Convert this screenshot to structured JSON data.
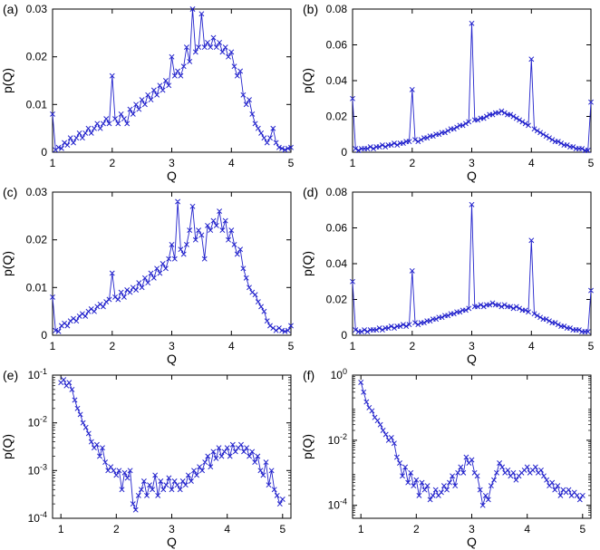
{
  "figure": {
    "background": "#ffffff",
    "line_color": "#2222cc",
    "axis_color": "#000000"
  },
  "chart_data": [
    {
      "type": "line",
      "panel_label": "(a)",
      "xlabel": "Q",
      "ylabel": "p(Q)",
      "marker": "x",
      "yscale": "linear",
      "xlim": [
        1,
        5
      ],
      "ylim": [
        0,
        0.03
      ],
      "xticks": [
        1,
        2,
        3,
        4,
        5
      ],
      "xtick_labels": [
        "1",
        "2",
        "3",
        "4",
        "5"
      ],
      "yticks": [
        0,
        0.01,
        0.02,
        0.03
      ],
      "ytick_labels": [
        "0",
        "0.01",
        "0.02",
        "0.03"
      ],
      "x_start": 1.0,
      "x_step": 0.05,
      "y": [
        0.008,
        0.0005,
        0.001,
        0.0008,
        0.002,
        0.0015,
        0.003,
        0.002,
        0.003,
        0.004,
        0.003,
        0.004,
        0.005,
        0.004,
        0.005,
        0.006,
        0.005,
        0.006,
        0.007,
        0.006,
        0.016,
        0.007,
        0.006,
        0.008,
        0.007,
        0.006,
        0.009,
        0.008,
        0.01,
        0.009,
        0.011,
        0.01,
        0.012,
        0.011,
        0.013,
        0.012,
        0.014,
        0.013,
        0.015,
        0.014,
        0.02,
        0.016,
        0.017,
        0.016,
        0.018,
        0.022,
        0.019,
        0.03,
        0.021,
        0.022,
        0.029,
        0.022,
        0.023,
        0.022,
        0.024,
        0.022,
        0.023,
        0.021,
        0.022,
        0.02,
        0.021,
        0.018,
        0.016,
        0.017,
        0.012,
        0.01,
        0.011,
        0.008,
        0.006,
        0.005,
        0.004,
        0.003,
        0.002,
        0.003,
        0.005,
        0.002,
        0.001,
        0.0008,
        0.0005,
        0.0008,
        0.001
      ]
    },
    {
      "type": "line",
      "panel_label": "(b)",
      "xlabel": "Q",
      "ylabel": "p(Q)",
      "marker": "x",
      "yscale": "linear",
      "xlim": [
        1,
        5
      ],
      "ylim": [
        0,
        0.08
      ],
      "xticks": [
        1,
        2,
        3,
        4,
        5
      ],
      "xtick_labels": [
        "1",
        "2",
        "3",
        "4",
        "5"
      ],
      "yticks": [
        0,
        0.02,
        0.04,
        0.06,
        0.08
      ],
      "ytick_labels": [
        "0",
        "0.02",
        "0.04",
        "0.06",
        "0.08"
      ],
      "x_start": 1.0,
      "x_step": 0.05,
      "y": [
        0.03,
        0.002,
        0.001,
        0.002,
        0.002,
        0.002,
        0.003,
        0.002,
        0.003,
        0.003,
        0.004,
        0.003,
        0.004,
        0.004,
        0.005,
        0.004,
        0.005,
        0.005,
        0.006,
        0.006,
        0.035,
        0.007,
        0.006,
        0.007,
        0.008,
        0.008,
        0.009,
        0.009,
        0.01,
        0.01,
        0.011,
        0.011,
        0.012,
        0.013,
        0.013,
        0.014,
        0.015,
        0.015,
        0.016,
        0.017,
        0.072,
        0.018,
        0.018,
        0.019,
        0.019,
        0.02,
        0.021,
        0.021,
        0.022,
        0.022,
        0.023,
        0.022,
        0.021,
        0.021,
        0.02,
        0.019,
        0.018,
        0.017,
        0.016,
        0.015,
        0.052,
        0.013,
        0.012,
        0.011,
        0.01,
        0.009,
        0.008,
        0.007,
        0.006,
        0.006,
        0.005,
        0.004,
        0.004,
        0.003,
        0.003,
        0.002,
        0.002,
        0.002,
        0.001,
        0.001,
        0.028
      ]
    },
    {
      "type": "line",
      "panel_label": "(c)",
      "xlabel": "Q",
      "ylabel": "p(Q)",
      "marker": "x",
      "yscale": "linear",
      "xlim": [
        1,
        5
      ],
      "ylim": [
        0,
        0.03
      ],
      "xticks": [
        1,
        2,
        3,
        4,
        5
      ],
      "xtick_labels": [
        "1",
        "2",
        "3",
        "4",
        "5"
      ],
      "yticks": [
        0,
        0.01,
        0.02,
        0.03
      ],
      "ytick_labels": [
        "0",
        "0.01",
        "0.02",
        "0.03"
      ],
      "x_start": 1.0,
      "x_step": 0.05,
      "y": [
        0.008,
        0.001,
        0.0008,
        0.002,
        0.0025,
        0.002,
        0.003,
        0.0035,
        0.003,
        0.004,
        0.0045,
        0.004,
        0.005,
        0.0055,
        0.005,
        0.006,
        0.0065,
        0.006,
        0.007,
        0.0075,
        0.013,
        0.008,
        0.0075,
        0.009,
        0.008,
        0.0095,
        0.009,
        0.01,
        0.0095,
        0.011,
        0.01,
        0.012,
        0.011,
        0.013,
        0.012,
        0.014,
        0.013,
        0.015,
        0.014,
        0.016,
        0.019,
        0.016,
        0.028,
        0.018,
        0.017,
        0.019,
        0.022,
        0.027,
        0.02,
        0.022,
        0.021,
        0.016,
        0.023,
        0.022,
        0.024,
        0.023,
        0.026,
        0.022,
        0.024,
        0.02,
        0.022,
        0.019,
        0.017,
        0.018,
        0.014,
        0.012,
        0.01,
        0.009,
        0.0085,
        0.007,
        0.006,
        0.005,
        0.003,
        0.002,
        0.0015,
        0.001,
        0.0015,
        0.001,
        0.0008,
        0.001,
        0.002
      ]
    },
    {
      "type": "line",
      "panel_label": "(d)",
      "xlabel": "Q",
      "ylabel": "p(Q)",
      "marker": "x",
      "yscale": "linear",
      "xlim": [
        1,
        5
      ],
      "ylim": [
        0,
        0.08
      ],
      "xticks": [
        1,
        2,
        3,
        4,
        5
      ],
      "xtick_labels": [
        "1",
        "2",
        "3",
        "4",
        "5"
      ],
      "yticks": [
        0,
        0.02,
        0.04,
        0.06,
        0.08
      ],
      "ytick_labels": [
        "0",
        "0.02",
        "0.04",
        "0.06",
        "0.08"
      ],
      "x_start": 1.0,
      "x_step": 0.05,
      "y": [
        0.03,
        0.003,
        0.002,
        0.002,
        0.003,
        0.002,
        0.003,
        0.003,
        0.003,
        0.004,
        0.003,
        0.004,
        0.004,
        0.005,
        0.004,
        0.005,
        0.005,
        0.006,
        0.005,
        0.006,
        0.036,
        0.007,
        0.006,
        0.007,
        0.007,
        0.008,
        0.008,
        0.009,
        0.009,
        0.01,
        0.01,
        0.011,
        0.011,
        0.012,
        0.012,
        0.013,
        0.013,
        0.014,
        0.014,
        0.015,
        0.073,
        0.016,
        0.016,
        0.017,
        0.016,
        0.017,
        0.017,
        0.018,
        0.017,
        0.017,
        0.016,
        0.017,
        0.016,
        0.016,
        0.015,
        0.016,
        0.015,
        0.014,
        0.014,
        0.013,
        0.053,
        0.012,
        0.011,
        0.01,
        0.009,
        0.009,
        0.008,
        0.007,
        0.007,
        0.006,
        0.005,
        0.005,
        0.004,
        0.004,
        0.003,
        0.003,
        0.003,
        0.002,
        0.002,
        0.002,
        0.025
      ]
    },
    {
      "type": "line",
      "panel_label": "(e)",
      "xlabel": "Q",
      "ylabel": "p(Q)",
      "marker": "x",
      "yscale": "log",
      "xlim": [
        0.85,
        5.15
      ],
      "ylim": [
        0.0001,
        0.1
      ],
      "xticks": [
        1,
        2,
        3,
        4,
        5
      ],
      "xtick_labels": [
        "1",
        "2",
        "3",
        "4",
        "5"
      ],
      "yticks": [
        0.1,
        0.01,
        0.001,
        0.0001
      ],
      "ytick_labels": [
        "10^-1",
        "10^-2",
        "10^-3",
        "10^-4"
      ],
      "x_start": 1.0,
      "x_step": 0.05,
      "y": [
        0.07,
        0.08,
        0.06,
        0.07,
        0.05,
        0.03,
        0.02,
        0.015,
        0.01,
        0.008,
        0.006,
        0.004,
        0.003,
        0.0035,
        0.002,
        0.003,
        0.0015,
        0.001,
        0.0012,
        0.001,
        0.0008,
        0.001,
        0.0004,
        0.0009,
        0.0007,
        0.001,
        0.0002,
        0.00015,
        0.0003,
        0.0004,
        0.0006,
        0.0003,
        0.0005,
        0.0004,
        0.0008,
        0.0003,
        0.0006,
        0.0004,
        0.0005,
        0.0007,
        0.0004,
        0.0006,
        0.0005,
        0.0004,
        0.0006,
        0.0005,
        0.0008,
        0.0006,
        0.001,
        0.0008,
        0.0012,
        0.001,
        0.0015,
        0.002,
        0.0012,
        0.0025,
        0.0018,
        0.003,
        0.002,
        0.0025,
        0.003,
        0.002,
        0.0035,
        0.0025,
        0.003,
        0.0035,
        0.0025,
        0.003,
        0.002,
        0.0025,
        0.0015,
        0.002,
        0.001,
        0.0008,
        0.0015,
        0.0005,
        0.001,
        0.0004,
        0.0003,
        0.0002,
        0.00025
      ]
    },
    {
      "type": "line",
      "panel_label": "(f)",
      "xlabel": "Q",
      "ylabel": "p(Q)",
      "marker": "x",
      "yscale": "log",
      "xlim": [
        0.85,
        5.15
      ],
      "ylim": [
        4e-05,
        1.0
      ],
      "xticks": [
        1,
        2,
        3,
        4,
        5
      ],
      "xtick_labels": [
        "1",
        "2",
        "3",
        "4",
        "5"
      ],
      "yticks": [
        1,
        0.01,
        0.0001
      ],
      "ytick_labels": [
        "10^0",
        "10^-2",
        "10^-4"
      ],
      "x_start": 1.0,
      "x_step": 0.05,
      "y": [
        0.6,
        0.3,
        0.15,
        0.1,
        0.08,
        0.05,
        0.04,
        0.03,
        0.02,
        0.015,
        0.01,
        0.012,
        0.008,
        0.003,
        0.002,
        0.0008,
        0.0015,
        0.0005,
        0.001,
        0.0004,
        0.0006,
        0.0002,
        0.0005,
        0.0003,
        0.0004,
        0.00015,
        0.0002,
        0.0003,
        0.0002,
        0.00025,
        0.0004,
        0.0003,
        0.0005,
        0.0008,
        0.0004,
        0.001,
        0.0015,
        0.001,
        0.003,
        0.002,
        0.0025,
        0.001,
        0.0008,
        0.0003,
        0.0001,
        0.0002,
        0.00015,
        0.0004,
        0.0006,
        0.001,
        0.002,
        0.0015,
        0.001,
        0.0012,
        0.0008,
        0.001,
        0.0006,
        0.0008,
        0.001,
        0.0012,
        0.0015,
        0.001,
        0.0012,
        0.0015,
        0.001,
        0.0012,
        0.0008,
        0.0006,
        0.0004,
        0.0005,
        0.0003,
        0.0004,
        0.0002,
        0.0003,
        0.00025,
        0.0003,
        0.0002,
        0.00025,
        0.0002,
        0.00015,
        0.0002
      ]
    }
  ]
}
